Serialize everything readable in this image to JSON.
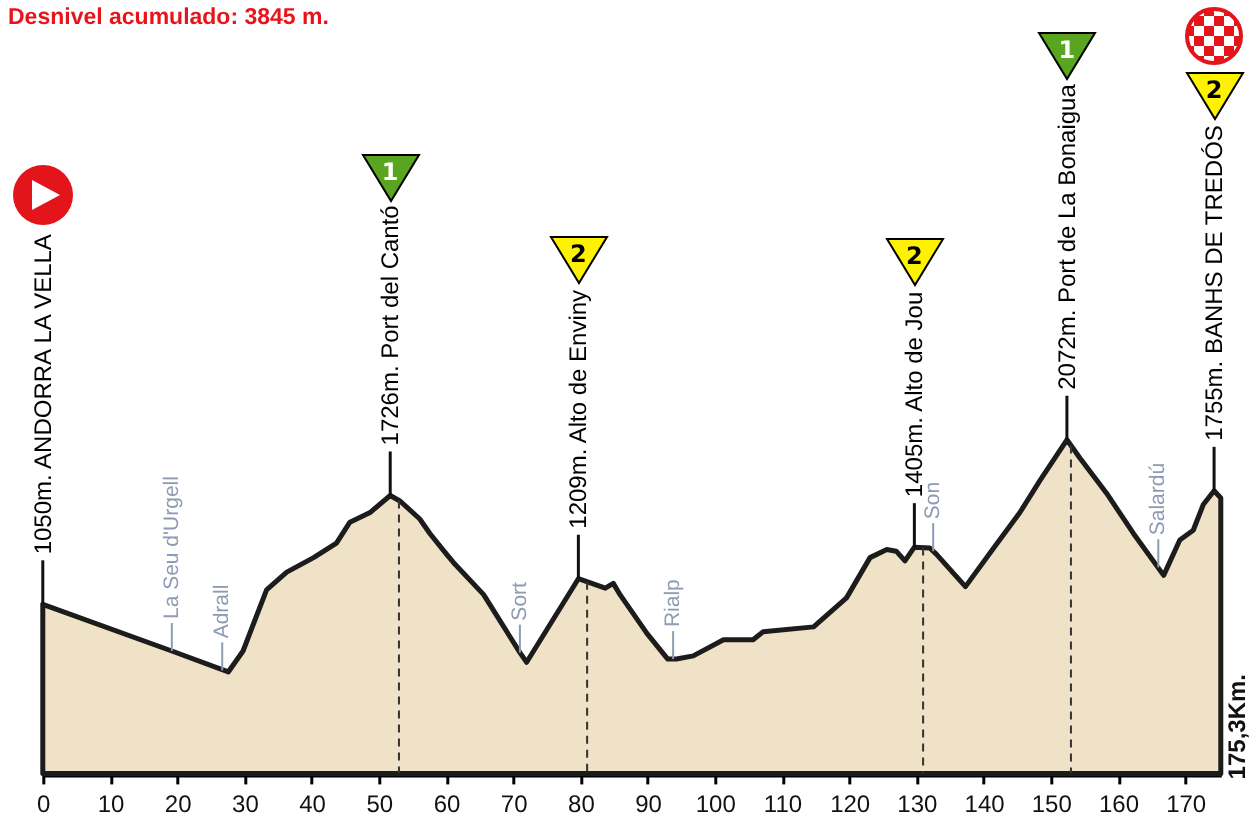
{
  "chart_data": {
    "type": "area",
    "title": "Desnivel acumulado: 3845 m.",
    "x": [
      0,
      19.2,
      27.6,
      29.8,
      33.3,
      36.3,
      40.3,
      43.7,
      45.7,
      48.7,
      51.7,
      53.2,
      56.1,
      57.6,
      60.1,
      61.1,
      65.6,
      69.5,
      71.0,
      72.0,
      79.7,
      81.7,
      83.7,
      84.9,
      85.9,
      89.9,
      93.0,
      94.3,
      96.8,
      101.3,
      105.7,
      107.2,
      114.7,
      116.6,
      119.6,
      123.1,
      125.6,
      127.0,
      128.3,
      129.7,
      132.0,
      133.0,
      137.3,
      141.5,
      145.4,
      148.4,
      152.4,
      154.3,
      158.3,
      162.3,
      166.8,
      169.2,
      171.2,
      172.7,
      174.3,
      175.3
    ],
    "series": [
      {
        "color": "#efe2c6",
        "values": [
          1050,
          760,
          630,
          760,
          1140,
          1250,
          1340,
          1430,
          1560,
          1620,
          1726,
          1690,
          1580,
          1490,
          1360,
          1310,
          1110,
          850,
          750,
          690,
          1209,
          1180,
          1150,
          1180,
          1110,
          870,
          710,
          710,
          730,
          830,
          830,
          880,
          910,
          980,
          1090,
          1340,
          1390,
          1380,
          1320,
          1405,
          1400,
          1360,
          1160,
          1400,
          1620,
          1820,
          2072,
          1960,
          1740,
          1490,
          1230,
          1450,
          1510,
          1670,
          1755,
          1710
        ],
        "value_labels": [
          "1050m. ANDORRA LA VELLA",
          null,
          null,
          null,
          null,
          null,
          null,
          null,
          null,
          null,
          "1726m. Port del Cantó",
          null,
          null,
          null,
          null,
          null,
          null,
          null,
          null,
          null,
          "1209m. Alto de Enviny",
          null,
          null,
          null,
          null,
          null,
          null,
          null,
          null,
          null,
          null,
          null,
          null,
          null,
          null,
          null,
          null,
          null,
          null,
          "1405m. Alto de Jou",
          null,
          null,
          null,
          null,
          null,
          null,
          "2072m. Port de La Bonaigua",
          null,
          null,
          null,
          null,
          null,
          null,
          null,
          "1755m. BANHS DE TREDÓS",
          null
        ]
      }
    ],
    "xlim": [
      0,
      175.3
    ],
    "xticks": [
      0,
      10,
      20,
      30,
      40,
      50,
      60,
      70,
      80,
      90,
      100,
      110,
      120,
      130,
      140,
      150,
      160,
      170
    ],
    "tick_labels": "x",
    "ref_lines": [
      {
        "axis": "x",
        "value": 53,
        "color": "#333333",
        "line_style": "dashed"
      },
      {
        "axis": "x",
        "value": 81,
        "color": "#333333",
        "line_style": "dashed"
      },
      {
        "axis": "x",
        "value": 131,
        "color": "#333333",
        "line_style": "dashed"
      },
      {
        "axis": "x",
        "value": 153,
        "color": "#333333",
        "line_style": "dashed"
      }
    ],
    "annotations": [
      {
        "text": "La Seu d'Urgell",
        "x": 19.2,
        "y": 760
      },
      {
        "text": "Adrall",
        "x": 26.7,
        "y": 640
      },
      {
        "text": "Sort",
        "x": 71.0,
        "y": 750
      },
      {
        "text": "Rialp",
        "x": 93.8,
        "y": 710
      },
      {
        "text": "Son",
        "x": 132.5,
        "y": 1380
      },
      {
        "text": "Salardú",
        "x": 166.0,
        "y": 1280
      },
      "1",
      "2",
      "2",
      "1",
      "2",
      "175,3Km."
    ]
  }
}
